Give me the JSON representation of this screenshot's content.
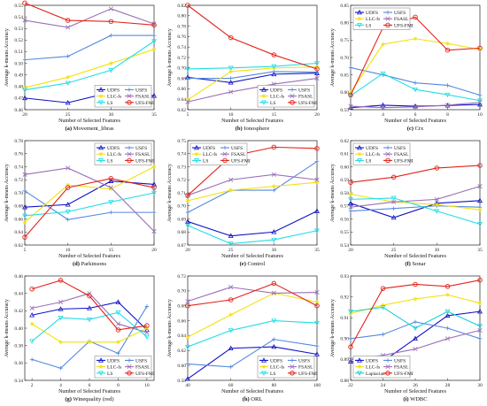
{
  "figure": {
    "method_colors": {
      "UDFS": "#1010c8",
      "USFS": "#5588dd",
      "LLC-fs": "#f4e10e",
      "FSASL": "#9a6fb6",
      "LS": "#22dde6",
      "UFS-FMI": "#e2231a",
      "Laplacian": "#1ecfd8"
    }
  },
  "chart_data": [
    {
      "type": "line",
      "letter": "(a)",
      "name": "Movement_libras",
      "xlabel": "Number of Selected Features",
      "ylabel": "Average k-means Accuracy",
      "x": [
        20,
        25,
        30,
        35
      ],
      "xticks": [
        20,
        25,
        30,
        35
      ],
      "xlim": [
        20,
        35
      ],
      "ylim": [
        0.46,
        0.55
      ],
      "yticks": [
        0.46,
        0.47,
        0.48,
        0.49,
        0.5,
        0.51,
        0.52,
        0.53,
        0.54,
        0.55
      ],
      "legend": "bottom-right",
      "legend_cols": 2,
      "series": [
        {
          "name": "UDFS",
          "values": [
            0.47,
            0.466,
            0.475,
            0.472
          ]
        },
        {
          "name": "USFS",
          "values": [
            0.503,
            0.506,
            0.524,
            0.524
          ]
        },
        {
          "name": "LLC-fs",
          "values": [
            0.479,
            0.488,
            0.5,
            0.512
          ]
        },
        {
          "name": "FSASL",
          "values": [
            0.537,
            0.531,
            0.547,
            0.534
          ]
        },
        {
          "name": "LS",
          "values": [
            0.477,
            0.483,
            0.494,
            0.519
          ]
        },
        {
          "name": "UFS-FMI",
          "values": [
            0.552,
            0.537,
            0.536,
            0.533
          ]
        }
      ]
    },
    {
      "type": "line",
      "letter": "(b)",
      "name": "Ionosphere",
      "xlabel": "Number of Selected Features",
      "ylabel": "Average k-means Accuracy",
      "x": [
        5,
        10,
        15,
        20
      ],
      "xticks": [
        5,
        10,
        15,
        20
      ],
      "xlim": [
        5,
        20
      ],
      "ylim": [
        0.62,
        0.82
      ],
      "yticks": [
        0.62,
        0.64,
        0.66,
        0.68,
        0.7,
        0.72,
        0.74,
        0.76,
        0.78,
        0.8,
        0.82
      ],
      "legend": "bottom-right",
      "legend_cols": 2,
      "series": [
        {
          "name": "UDFS",
          "values": [
            0.682,
            0.672,
            0.688,
            0.69
          ]
        },
        {
          "name": "USFS",
          "values": [
            0.68,
            0.68,
            0.693,
            0.692
          ]
        },
        {
          "name": "LLC-fs",
          "values": [
            0.639,
            0.693,
            0.7,
            0.702
          ]
        },
        {
          "name": "FSASL",
          "values": [
            0.635,
            0.654,
            0.669,
            0.68
          ]
        },
        {
          "name": "LS",
          "values": [
            0.698,
            0.7,
            0.703,
            0.709
          ]
        },
        {
          "name": "UFS-FMI",
          "values": [
            0.82,
            0.758,
            0.725,
            0.698
          ]
        }
      ]
    },
    {
      "type": "line",
      "letter": "(c)",
      "name": "Crx",
      "xlabel": "Number of Selected Features",
      "ylabel": "Average k-means Accuracy",
      "x": [
        2,
        4,
        6,
        8,
        10
      ],
      "xticks": [
        2,
        4,
        6,
        8,
        10
      ],
      "xlim": [
        2,
        10
      ],
      "ylim": [
        0.55,
        0.85
      ],
      "yticks": [
        0.55,
        0.6,
        0.65,
        0.7,
        0.75,
        0.8,
        0.85
      ],
      "legend": "top-left",
      "legend_cols": 2,
      "series": [
        {
          "name": "UDFS",
          "values": [
            0.556,
            0.563,
            0.56,
            0.562,
            0.565
          ]
        },
        {
          "name": "USFS",
          "values": [
            0.671,
            0.65,
            0.627,
            0.62,
            0.592
          ]
        },
        {
          "name": "LLC-fs",
          "values": [
            0.6,
            0.738,
            0.754,
            0.74,
            0.723
          ]
        },
        {
          "name": "FSASL",
          "values": [
            0.56,
            0.556,
            0.558,
            0.563,
            0.571
          ]
        },
        {
          "name": "LS",
          "values": [
            0.59,
            0.654,
            0.608,
            0.593,
            0.576
          ]
        },
        {
          "name": "UFS-FMI",
          "values": [
            0.592,
            0.786,
            0.816,
            0.721,
            0.727
          ]
        }
      ]
    },
    {
      "type": "line",
      "letter": "(d)",
      "name": "Parkinsons",
      "xlabel": "Number of Selected Features",
      "ylabel": "Average k-means Accuracy",
      "x": [
        5,
        10,
        15,
        20
      ],
      "xticks": [
        5,
        10,
        15,
        20
      ],
      "xlim": [
        5,
        20
      ],
      "ylim": [
        0.62,
        0.78
      ],
      "yticks": [
        0.62,
        0.64,
        0.66,
        0.68,
        0.7,
        0.72,
        0.74,
        0.76,
        0.78
      ],
      "legend": "top-right",
      "legend_cols": 2,
      "series": [
        {
          "name": "UDFS",
          "values": [
            0.678,
            0.682,
            0.718,
            0.713
          ]
        },
        {
          "name": "USFS",
          "values": [
            0.703,
            0.659,
            0.67,
            0.67
          ]
        },
        {
          "name": "LLC-fs",
          "values": [
            0.655,
            0.712,
            0.706,
            0.74
          ]
        },
        {
          "name": "FSASL",
          "values": [
            0.728,
            0.738,
            0.708,
            0.641
          ]
        },
        {
          "name": "LS",
          "values": [
            0.665,
            0.671,
            0.686,
            0.7
          ]
        },
        {
          "name": "UFS-FMI",
          "values": [
            0.632,
            0.708,
            0.722,
            0.708
          ]
        }
      ]
    },
    {
      "type": "line",
      "letter": "(e)",
      "name": "Control",
      "xlabel": "Number of Selected Features",
      "ylabel": "Average k-means Accuracy",
      "x": [
        20,
        25,
        30,
        35
      ],
      "xticks": [
        20,
        25,
        30,
        35
      ],
      "xlim": [
        20,
        35
      ],
      "ylim": [
        0.67,
        0.75
      ],
      "yticks": [
        0.67,
        0.68,
        0.69,
        0.7,
        0.71,
        0.72,
        0.73,
        0.74,
        0.75
      ],
      "legend": "top-left",
      "legend_cols": 2,
      "series": [
        {
          "name": "UDFS",
          "values": [
            0.688,
            0.677,
            0.68,
            0.696
          ]
        },
        {
          "name": "USFS",
          "values": [
            0.695,
            0.712,
            0.712,
            0.734
          ]
        },
        {
          "name": "LLC-fs",
          "values": [
            0.704,
            0.712,
            0.715,
            0.718
          ]
        },
        {
          "name": "FSASL",
          "values": [
            0.708,
            0.72,
            0.724,
            0.72
          ]
        },
        {
          "name": "LS",
          "values": [
            0.685,
            0.671,
            0.674,
            0.681
          ]
        },
        {
          "name": "UFS-FMI",
          "values": [
            0.708,
            0.738,
            0.745,
            0.744
          ]
        }
      ]
    },
    {
      "type": "line",
      "letter": "(f)",
      "name": "Sonar",
      "xlabel": "Number of Selected Features",
      "ylabel": "Average k-means Accuracy",
      "x": [
        20,
        25,
        30,
        35
      ],
      "xticks": [
        20,
        25,
        30,
        35
      ],
      "xlim": [
        20,
        35
      ],
      "ylim": [
        0.54,
        0.62
      ],
      "yticks": [
        0.54,
        0.55,
        0.56,
        0.57,
        0.58,
        0.59,
        0.6,
        0.61,
        0.62
      ],
      "legend": "top-left",
      "legend_cols": 2,
      "series": [
        {
          "name": "UDFS",
          "values": [
            0.572,
            0.561,
            0.572,
            0.574
          ]
        },
        {
          "name": "USFS",
          "values": [
            0.566,
            0.568,
            0.57,
            0.569
          ]
        },
        {
          "name": "LLC-fs",
          "values": [
            0.579,
            0.573,
            0.571,
            0.567
          ]
        },
        {
          "name": "FSASL",
          "values": [
            0.569,
            0.573,
            0.575,
            0.585
          ]
        },
        {
          "name": "LS",
          "values": [
            0.575,
            0.576,
            0.566,
            0.556
          ]
        },
        {
          "name": "UFS-FMI",
          "values": [
            0.588,
            0.592,
            0.599,
            0.601
          ]
        }
      ]
    },
    {
      "type": "line",
      "letter": "(g)",
      "name": "Winequality (red)",
      "xlabel": "Number of Selected Features",
      "ylabel": "Average k-means Accuracy",
      "x": [
        2,
        4,
        6,
        8,
        10
      ],
      "xticks": [
        2,
        4,
        6,
        8,
        10
      ],
      "xlim": [
        1.5,
        10.5
      ],
      "ylim": [
        0.34,
        0.46
      ],
      "yticks": [
        0.34,
        0.36,
        0.38,
        0.4,
        0.42,
        0.44,
        0.46
      ],
      "legend": "bottom-right",
      "legend_cols": 2,
      "series": [
        {
          "name": "UDFS",
          "values": [
            0.415,
            0.422,
            0.423,
            0.43,
            0.398
          ]
        },
        {
          "name": "USFS",
          "values": [
            0.364,
            0.354,
            0.385,
            0.371,
            0.425
          ]
        },
        {
          "name": "LLC-fs",
          "values": [
            0.405,
            0.384,
            0.384,
            0.384,
            0.4
          ]
        },
        {
          "name": "FSASL",
          "values": [
            0.423,
            0.43,
            0.44,
            0.405,
            0.395
          ]
        },
        {
          "name": "LS",
          "values": [
            0.385,
            0.412,
            0.41,
            0.418,
            0.39
          ]
        },
        {
          "name": "UFS-FMI",
          "values": [
            0.445,
            0.455,
            0.437,
            0.398,
            0.403
          ]
        }
      ]
    },
    {
      "type": "line",
      "letter": "(h)",
      "name": "ORL",
      "xlabel": "Number of Selected Features",
      "ylabel": "Average k-means Accuracy",
      "x": [
        40,
        60,
        80,
        100
      ],
      "xticks": [
        40,
        60,
        80,
        100
      ],
      "xlim": [
        40,
        100
      ],
      "ylim": [
        0.58,
        0.72
      ],
      "yticks": [
        0.58,
        0.6,
        0.62,
        0.64,
        0.66,
        0.68,
        0.7,
        0.72
      ],
      "legend": "bottom-right",
      "legend_cols": 2,
      "series": [
        {
          "name": "UDFS",
          "values": [
            0.582,
            0.623,
            0.625,
            0.615
          ]
        },
        {
          "name": "USFS",
          "values": [
            0.602,
            0.598,
            0.635,
            0.626
          ]
        },
        {
          "name": "LLC-fs",
          "values": [
            0.638,
            0.668,
            0.697,
            0.685
          ]
        },
        {
          "name": "FSASL",
          "values": [
            0.686,
            0.705,
            0.697,
            0.698
          ]
        },
        {
          "name": "LS",
          "values": [
            0.625,
            0.647,
            0.66,
            0.657
          ]
        },
        {
          "name": "UFS-FMI",
          "values": [
            0.68,
            0.688,
            0.71,
            0.68
          ]
        }
      ]
    },
    {
      "type": "line",
      "letter": "(i)",
      "name": "WDBC",
      "xlabel": "Number of Selected Features",
      "ylabel": "Average k-means Accuracy",
      "x": [
        22,
        24,
        26,
        28,
        30
      ],
      "xticks": [
        22,
        24,
        26,
        28,
        30
      ],
      "xlim": [
        22,
        30
      ],
      "ylim": [
        0.88,
        0.93
      ],
      "yticks": [
        0.88,
        0.89,
        0.9,
        0.91,
        0.92,
        0.93
      ],
      "legend": "bottom-left",
      "legend_cols": 2,
      "series": [
        {
          "name": "UDFS",
          "values": [
            0.889,
            0.889,
            0.9,
            0.911,
            0.913
          ]
        },
        {
          "name": "USFS",
          "values": [
            0.9,
            0.902,
            0.908,
            0.905,
            0.9
          ]
        },
        {
          "name": "LLC-fs",
          "values": [
            0.912,
            0.916,
            0.919,
            0.921,
            0.917
          ]
        },
        {
          "name": "FSASL",
          "values": [
            0.89,
            0.892,
            0.895,
            0.9,
            0.904
          ]
        },
        {
          "name": "Laplacian",
          "values": [
            0.913,
            0.915,
            0.905,
            0.913,
            0.906
          ]
        },
        {
          "name": "UFS-FMI",
          "values": [
            0.896,
            0.924,
            0.926,
            0.925,
            0.928
          ]
        }
      ]
    }
  ]
}
